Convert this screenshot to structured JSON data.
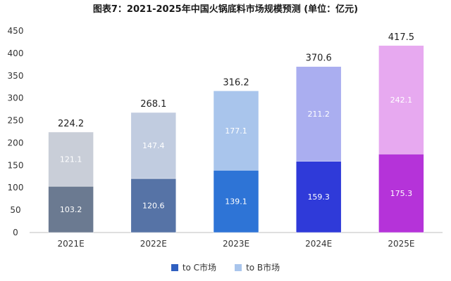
{
  "title": "图表7：2021-2025年中国火锅底料市场规模预测 (单位：亿元)",
  "chart_data": {
    "type": "bar",
    "stacked": true,
    "categories": [
      "2021E",
      "2022E",
      "2023E",
      "2024E",
      "2025E"
    ],
    "series": [
      {
        "name": "to C市场",
        "values": [
          103.2,
          120.6,
          139.1,
          159.3,
          175.3
        ]
      },
      {
        "name": "to B市场",
        "values": [
          121.1,
          147.4,
          177.1,
          211.2,
          242.1
        ]
      }
    ],
    "totals": [
      224.2,
      268.1,
      316.2,
      370.6,
      417.5
    ],
    "ylim": [
      0,
      450
    ],
    "yticks": [
      0,
      50,
      100,
      150,
      200,
      250,
      300,
      350,
      400,
      450
    ],
    "grid": false,
    "legend_position": "bottom",
    "colors": {
      "toC": [
        "#6b7a91",
        "#5673a6",
        "#2e74d6",
        "#2f3ad9",
        "#b533d9"
      ],
      "toB": [
        "#c9ced8",
        "#c1cce0",
        "#a9c5ec",
        "#aaaef0",
        "#e7a9f0"
      ],
      "legend_toC": "#2f5fc0",
      "legend_toB": "#a9c5ec"
    }
  }
}
